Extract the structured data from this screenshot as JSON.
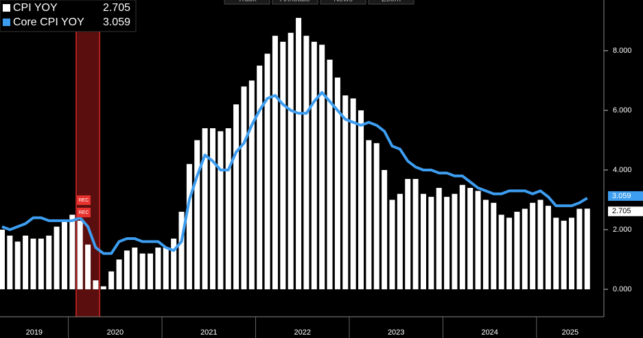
{
  "toolbar": [
    "Track",
    "Annotate",
    "News",
    "Zoom"
  ],
  "chart_data": {
    "type": "bar-line",
    "recession_label": "REC",
    "x_axis_labels": [
      "2019",
      "2020",
      "2021",
      "2022",
      "2023",
      "2024",
      "2025"
    ],
    "ylim": [
      -0.92,
      9.7
    ],
    "yticks": [
      {
        "value": 0,
        "label": "0.000"
      },
      {
        "value": 2,
        "label": "2.000"
      },
      {
        "value": 4,
        "label": "4.000"
      },
      {
        "value": 6,
        "label": "6.000"
      },
      {
        "value": 8,
        "label": "8.000"
      }
    ],
    "series": [
      {
        "name": "CPI YOY",
        "color": "#ffffff",
        "kind": "bar",
        "values": [
          2.0,
          1.8,
          1.6,
          1.8,
          1.7,
          1.7,
          1.8,
          2.1,
          2.3,
          2.5,
          2.3,
          1.5,
          0.3,
          0.1,
          0.6,
          1.0,
          1.3,
          1.4,
          1.2,
          1.2,
          1.4,
          1.4,
          1.7,
          2.6,
          4.2,
          5.0,
          5.4,
          5.4,
          5.3,
          5.4,
          6.2,
          6.8,
          7.0,
          7.5,
          7.9,
          8.5,
          8.3,
          8.6,
          9.1,
          8.5,
          8.3,
          8.2,
          7.7,
          7.1,
          6.5,
          6.4,
          6.0,
          5.0,
          4.9,
          4.0,
          3.0,
          3.2,
          3.7,
          3.7,
          3.2,
          3.1,
          3.4,
          3.1,
          3.2,
          3.5,
          3.4,
          3.3,
          3.0,
          2.9,
          2.5,
          2.4,
          2.6,
          2.7,
          2.9,
          3.0,
          2.8,
          2.4,
          2.3,
          2.4,
          2.7,
          2.705
        ]
      },
      {
        "name": "Core CPI YOY",
        "color": "#3d9df0",
        "kind": "line",
        "values": [
          2.1,
          2.0,
          2.1,
          2.2,
          2.4,
          2.4,
          2.3,
          2.3,
          2.3,
          2.3,
          2.4,
          2.1,
          1.4,
          1.2,
          1.2,
          1.6,
          1.7,
          1.7,
          1.6,
          1.6,
          1.6,
          1.4,
          1.3,
          1.6,
          3.0,
          3.8,
          4.5,
          4.3,
          4.0,
          4.0,
          4.6,
          4.9,
          5.5,
          6.0,
          6.4,
          6.5,
          6.2,
          6.0,
          5.9,
          5.9,
          6.3,
          6.6,
          6.3,
          6.0,
          5.7,
          5.6,
          5.5,
          5.6,
          5.5,
          5.3,
          4.8,
          4.7,
          4.3,
          4.1,
          4.0,
          4.0,
          3.9,
          3.9,
          3.8,
          3.8,
          3.6,
          3.4,
          3.3,
          3.2,
          3.2,
          3.3,
          3.3,
          3.3,
          3.2,
          3.3,
          3.1,
          2.8,
          2.8,
          2.8,
          2.9,
          3.059
        ]
      }
    ]
  }
}
